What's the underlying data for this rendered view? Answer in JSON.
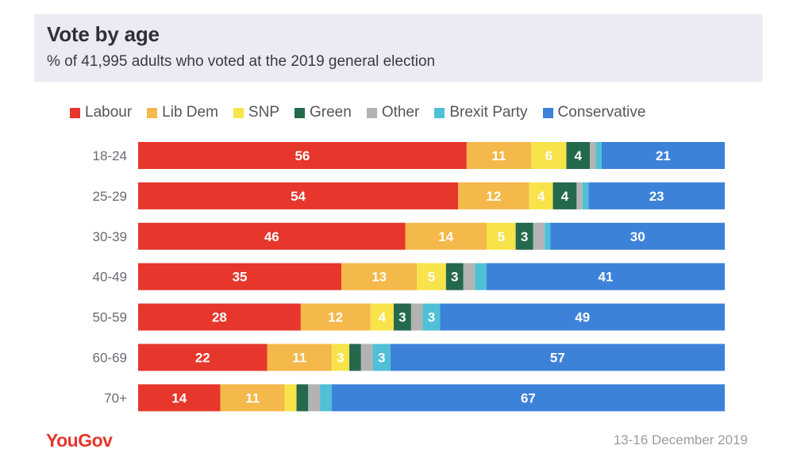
{
  "title": "Vote by age",
  "subtitle": "% of 41,995 adults who voted at the 2019 general election",
  "footer": {
    "logo": "YouGov",
    "date": "13-16 December 2019"
  },
  "chart_data": {
    "type": "bar",
    "orientation": "horizontal",
    "stacked": true,
    "legend_position": "top",
    "categories": [
      "18-24",
      "25-29",
      "30-39",
      "40-49",
      "50-59",
      "60-69",
      "70+"
    ],
    "series": [
      {
        "name": "Labour",
        "color": "#e7362b",
        "values": [
          56,
          54,
          46,
          35,
          28,
          22,
          14
        ],
        "labels": [
          "56",
          "54",
          "46",
          "35",
          "28",
          "22",
          "14"
        ]
      },
      {
        "name": "Lib Dem",
        "color": "#f4b94a",
        "values": [
          11,
          12,
          14,
          13,
          12,
          11,
          11
        ],
        "labels": [
          "11",
          "12",
          "14",
          "13",
          "12",
          "11",
          "11"
        ]
      },
      {
        "name": "SNP",
        "color": "#f8e34a",
        "values": [
          6,
          4,
          5,
          5,
          4,
          3,
          2
        ],
        "labels": [
          "6",
          "4",
          "5",
          "5",
          "4",
          "3",
          ""
        ]
      },
      {
        "name": "Green",
        "color": "#25694d",
        "values": [
          4,
          4,
          3,
          3,
          3,
          2,
          2
        ],
        "labels": [
          "4",
          "4",
          "3",
          "3",
          "3",
          "",
          ""
        ]
      },
      {
        "name": "Other",
        "color": "#b3b3b3",
        "values": [
          1,
          1,
          2,
          2,
          2,
          2,
          2
        ],
        "labels": [
          "",
          "",
          "",
          "",
          "",
          "",
          ""
        ]
      },
      {
        "name": "Brexit Party",
        "color": "#4fc0d6",
        "values": [
          1,
          1,
          1,
          2,
          3,
          3,
          2
        ],
        "labels": [
          "",
          "",
          "",
          "",
          "3",
          "3",
          ""
        ]
      },
      {
        "name": "Conservative",
        "color": "#3d82d9",
        "values": [
          21,
          23,
          30,
          41,
          49,
          57,
          67
        ],
        "labels": [
          "21",
          "23",
          "30",
          "41",
          "49",
          "57",
          "67"
        ]
      }
    ]
  }
}
